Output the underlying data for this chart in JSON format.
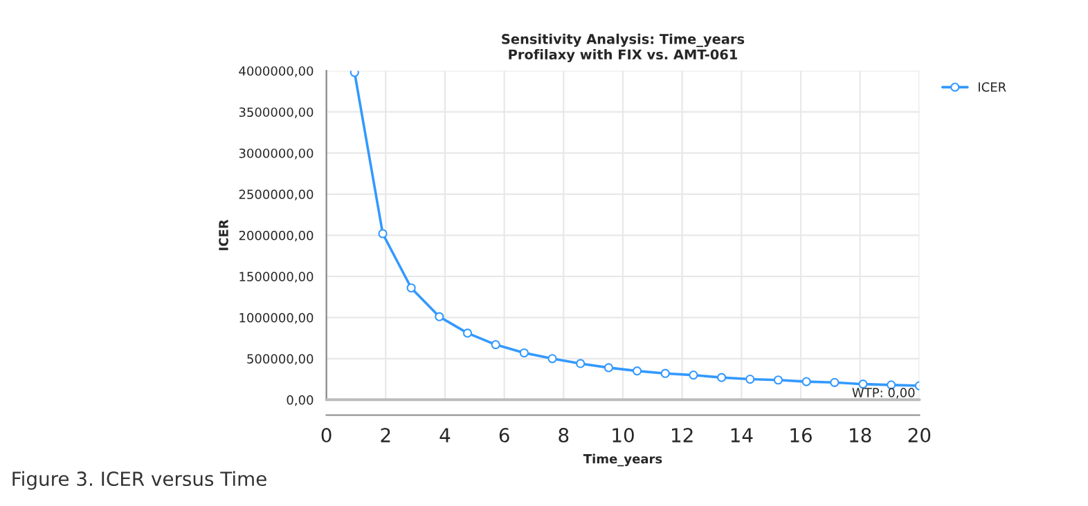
{
  "chart_data": {
    "type": "line",
    "title": "Sensitivity Analysis: Time_years\nProfilaxy with FIX vs. AMT-061",
    "xlabel": "Time_years",
    "ylabel": "ICER",
    "x": [
      0.95,
      1.9,
      2.86,
      3.81,
      4.76,
      5.71,
      6.67,
      7.62,
      8.57,
      9.52,
      10.48,
      11.43,
      12.38,
      13.33,
      14.29,
      15.24,
      16.19,
      17.14,
      18.1,
      19.05,
      20.0
    ],
    "series": [
      {
        "name": "ICER",
        "color": "#3399ff",
        "values": [
          3980000,
          2020000,
          1360000,
          1010000,
          810000,
          670000,
          570000,
          500000,
          440000,
          390000,
          350000,
          320000,
          300000,
          270000,
          250000,
          240000,
          220000,
          210000,
          190000,
          180000,
          170000
        ]
      }
    ],
    "xlim": [
      0,
      20
    ],
    "xticks": [
      0,
      2,
      4,
      6,
      8,
      10,
      12,
      14,
      16,
      18,
      20
    ],
    "ylim": [
      0,
      4000000
    ],
    "yticks": [
      {
        "value": 0,
        "label": "0,00"
      },
      {
        "value": 500000,
        "label": "500000,00"
      },
      {
        "value": 1000000,
        "label": "1000000,00"
      },
      {
        "value": 1500000,
        "label": "1500000,00"
      },
      {
        "value": 2000000,
        "label": "2000000,00"
      },
      {
        "value": 2500000,
        "label": "2500000,00"
      },
      {
        "value": 3000000,
        "label": "3000000,00"
      },
      {
        "value": 3500000,
        "label": "3500000,00"
      },
      {
        "value": 4000000,
        "label": "4000000,00"
      }
    ],
    "ref_lines": [
      {
        "axis": "y",
        "value": 0,
        "label": "WTP: 0,00",
        "color": "#bbbbbb"
      }
    ],
    "annotations": [
      "Figure 3. ICER versus Time"
    ],
    "grid": true,
    "legend": "top right",
    "marker": "circle",
    "line_style": "solid"
  }
}
